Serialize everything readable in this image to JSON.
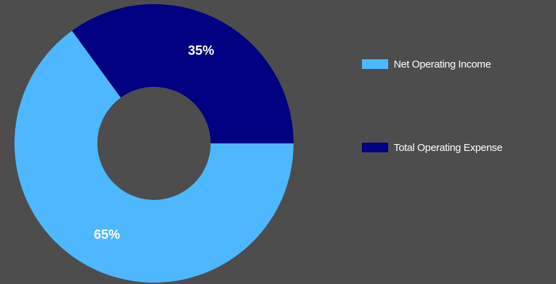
{
  "chart_data": {
    "type": "pie",
    "donut": true,
    "title": "",
    "slices": [
      {
        "name": "Net Operating Income",
        "value": 65,
        "label": "65%",
        "color": "#4db8ff"
      },
      {
        "name": "Total Operating Expense",
        "value": 35,
        "label": "35%",
        "color": "#000080"
      }
    ],
    "legend_position": "right"
  },
  "colors": {
    "background": "#4d4d4d",
    "label_text": "#ffffff"
  }
}
